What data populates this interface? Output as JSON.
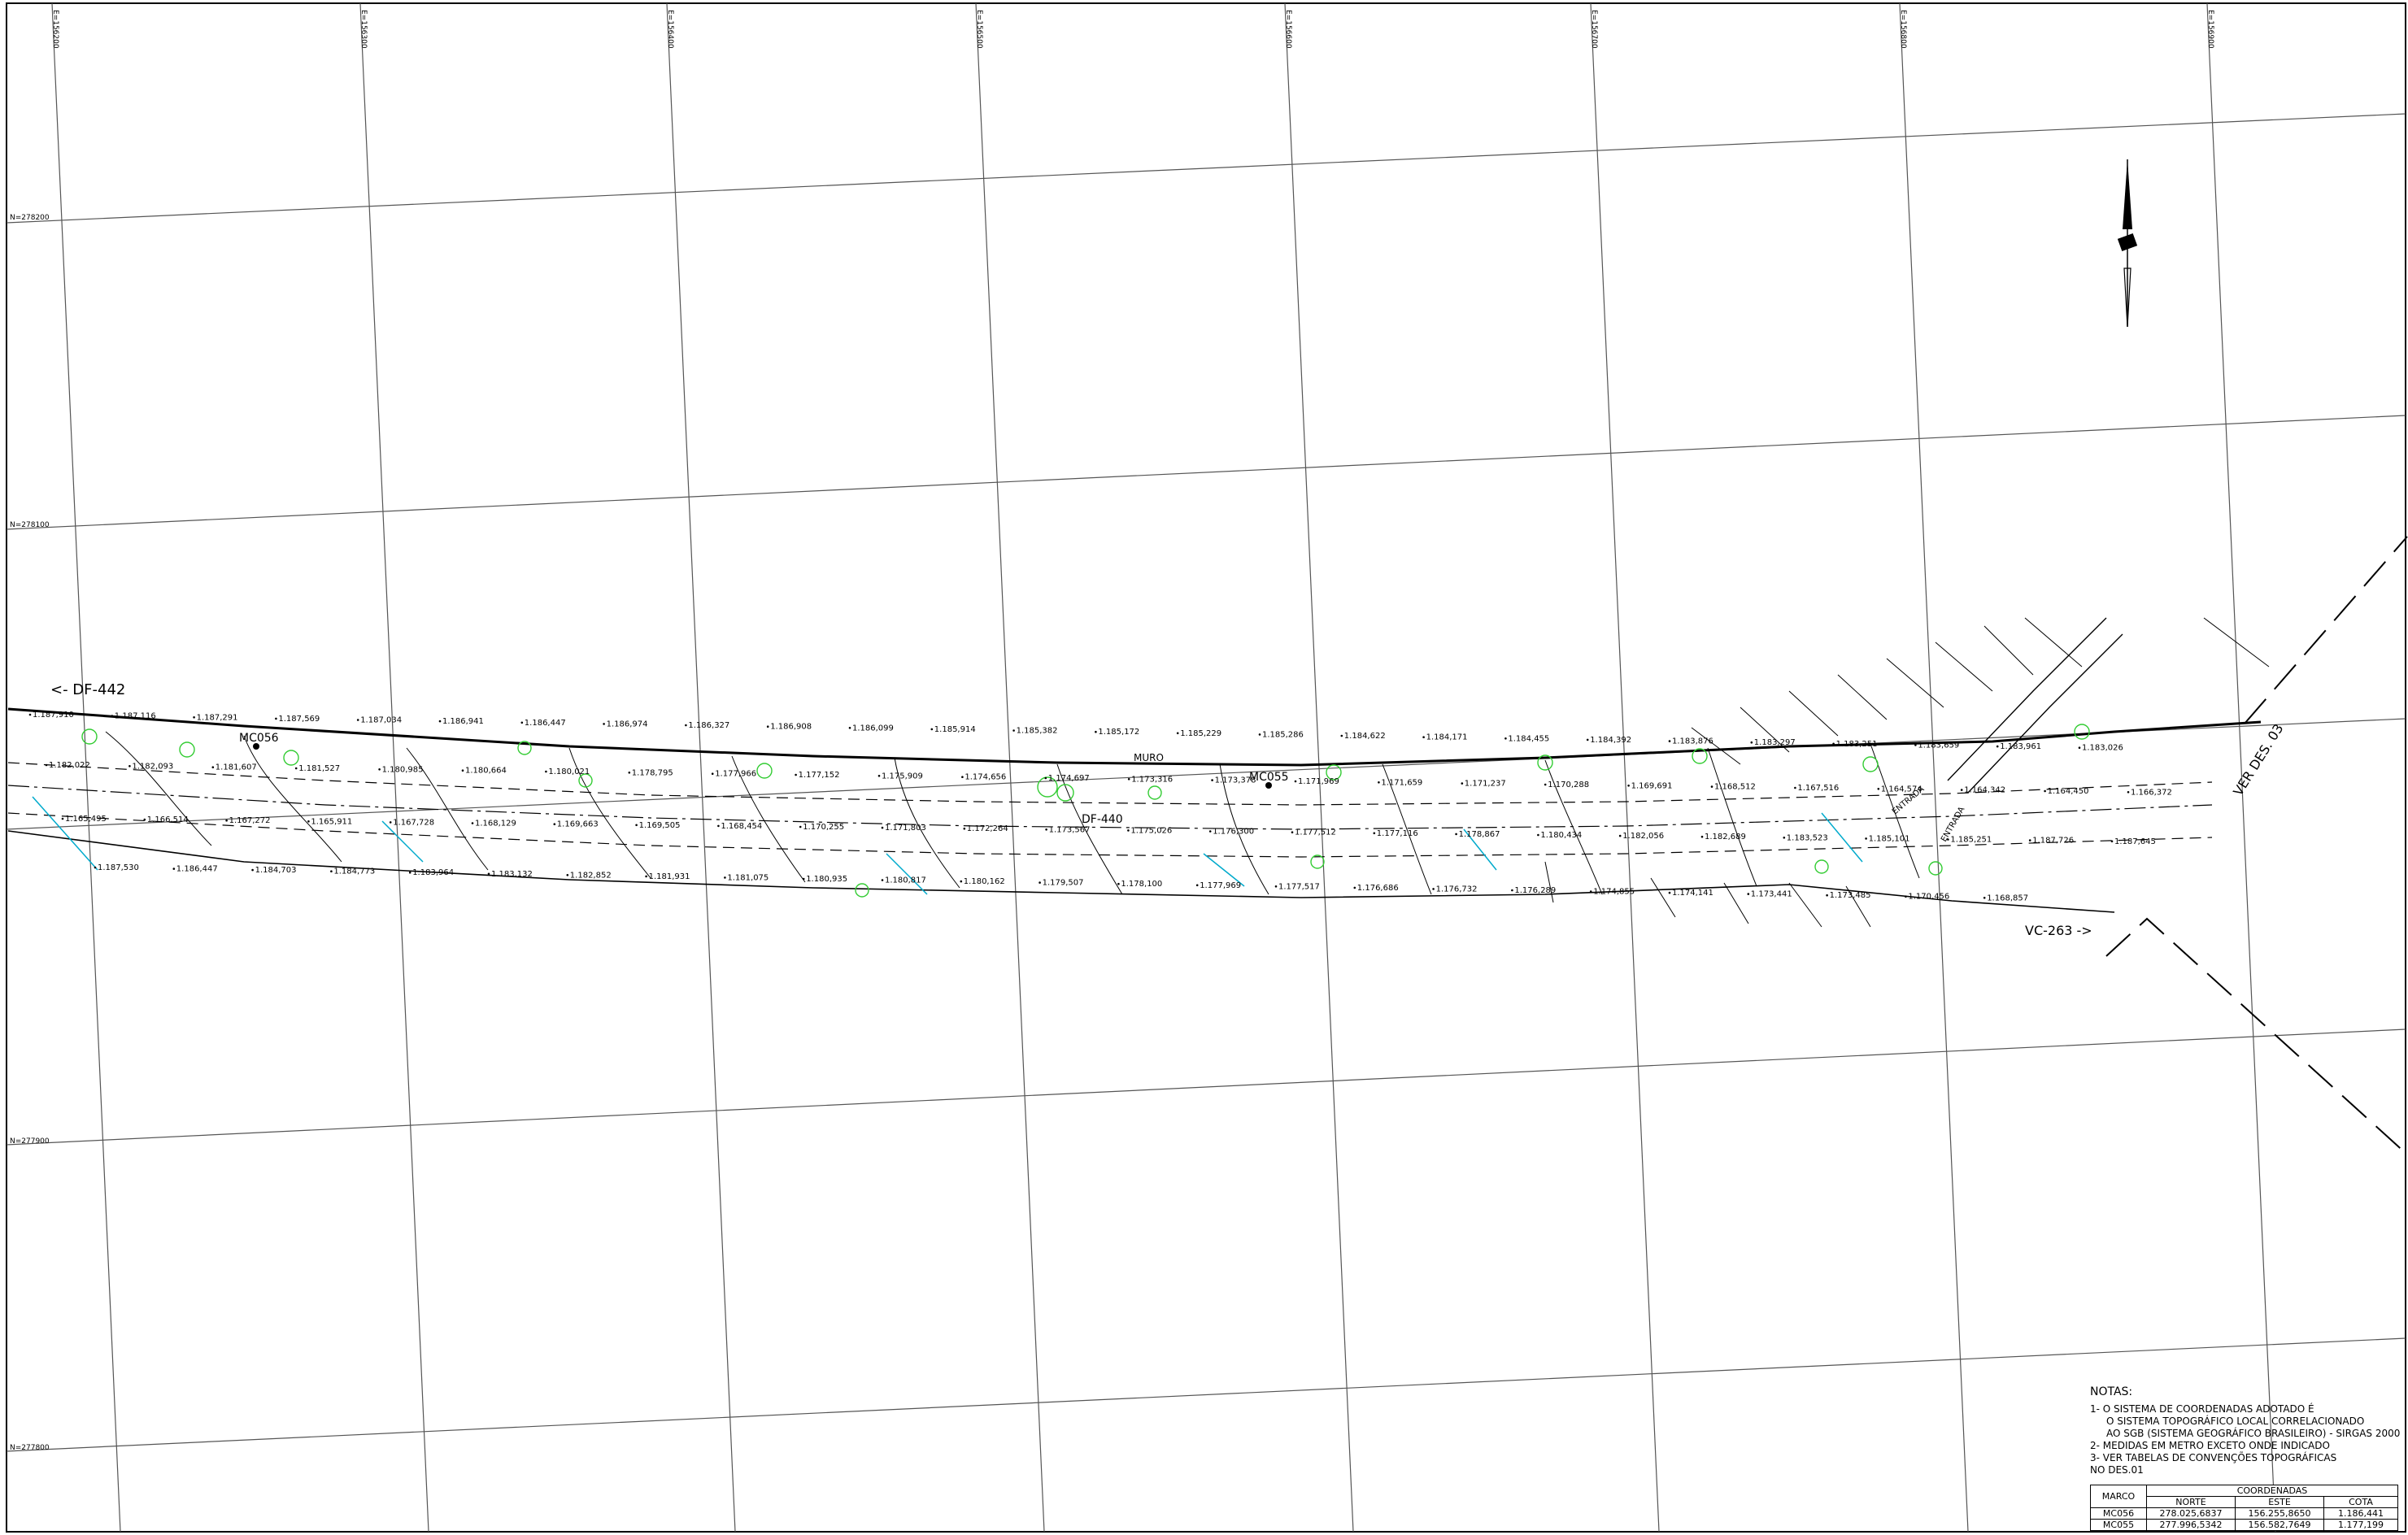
{
  "map": {
    "grid_east_labels": [
      "E=156200",
      "E=156300",
      "E=156400",
      "E=156500",
      "E=156600",
      "E=156700",
      "E=156800",
      "E=156900"
    ],
    "grid_north_labels": [
      "N=278200",
      "N=278100",
      "N=277900",
      "N=277800"
    ],
    "road_labels": {
      "df442": "<- DF-442",
      "vc263": "VC-263 ->",
      "muro": "MURO",
      "ver_des": "VER DES. 03",
      "df440": "DF-440",
      "entrada1": "ENTRADA",
      "entrada2": "ENTRADA"
    },
    "markers": [
      {
        "id": "MC056"
      },
      {
        "id": "MC055"
      }
    ],
    "elevations": [
      "1.187,910",
      "1.187,116",
      "1.187,291",
      "1.187,569",
      "1.187,034",
      "1.186,941",
      "1.186,447",
      "1.186,974",
      "1.186,327",
      "1.186,908",
      "1.186,099",
      "1.185,914",
      "1.185,382",
      "1.185,172",
      "1.185,229",
      "1.185,286",
      "1.184,622",
      "1.184,171",
      "1.184,455",
      "1.184,392",
      "1.183,876",
      "1.183,297",
      "1.183,251",
      "1.183,659",
      "1.183,961",
      "1.183,026",
      "1.182,022",
      "1.182,093",
      "1.181,607",
      "1.181,527",
      "1.180,985",
      "1.180,664",
      "1.180,021",
      "1.178,795",
      "1.177,966",
      "1.177,152",
      "1.175,909",
      "1.174,656",
      "1.174,697",
      "1.173,316",
      "1.173,378",
      "1.171,969",
      "1.171,659",
      "1.171,237",
      "1.170,288",
      "1.169,691",
      "1.168,512",
      "1.167,516",
      "1.164,574",
      "1.164,342",
      "1.164,450",
      "1.166,372",
      "1.165,495",
      "1.166,514",
      "1.167,272",
      "1.165,911",
      "1.167,728",
      "1.168,129",
      "1.169,663",
      "1.169,505",
      "1.168,454",
      "1.170,255",
      "1.171,803",
      "1.172,264",
      "1.173,567",
      "1.175,026",
      "1.176,300",
      "1.177,512",
      "1.177,116",
      "1.178,867",
      "1.180,434",
      "1.182,056",
      "1.182,689",
      "1.183,523",
      "1.185,101",
      "1.185,251",
      "1.187,726",
      "1.187,645",
      "1.187,530",
      "1.186,447",
      "1.184,703",
      "1.184,773",
      "1.183,964",
      "1.183,132",
      "1.182,852",
      "1.181,931",
      "1.181,075",
      "1.180,935",
      "1.180,817",
      "1.180,162",
      "1.179,507",
      "1.178,100",
      "1.177,969",
      "1.177,517",
      "1.176,686",
      "1.176,732",
      "1.176,289",
      "1.174,855",
      "1.174,141",
      "1.173,441",
      "1.173,485",
      "1.170,456",
      "1.168,857"
    ],
    "north_arrow": "north-arrow"
  },
  "notes": {
    "title": "NOTAS:",
    "items": [
      "1- O SISTEMA DE COORDENADAS ADOTADO É",
      "O SISTEMA TOPOGRÁFICO LOCAL CORRELACIONADO",
      "AO SGB (SISTEMA GEOGRÁFICO BRASILEIRO) - SIRGAS 2000",
      "2- MEDIDAS EM METRO EXCETO ONDE INDICADO",
      "3- VER TABELAS DE CONVENÇÕES TOPOGRÁFICAS",
      "NO DES.01"
    ]
  },
  "coord_table": {
    "header_marco": "MARCO",
    "header_group": "COORDENADAS",
    "col_norte": "NORTE",
    "col_este": "ESTE",
    "col_cota": "COTA",
    "rows": [
      {
        "marco": "MC056",
        "norte": "278.025,6837",
        "este": "156.255,8650",
        "cota": "1.186,441"
      },
      {
        "marco": "MC055",
        "norte": "277.996,5342",
        "este": "156.582,7649",
        "cota": "1.177,199"
      }
    ]
  }
}
